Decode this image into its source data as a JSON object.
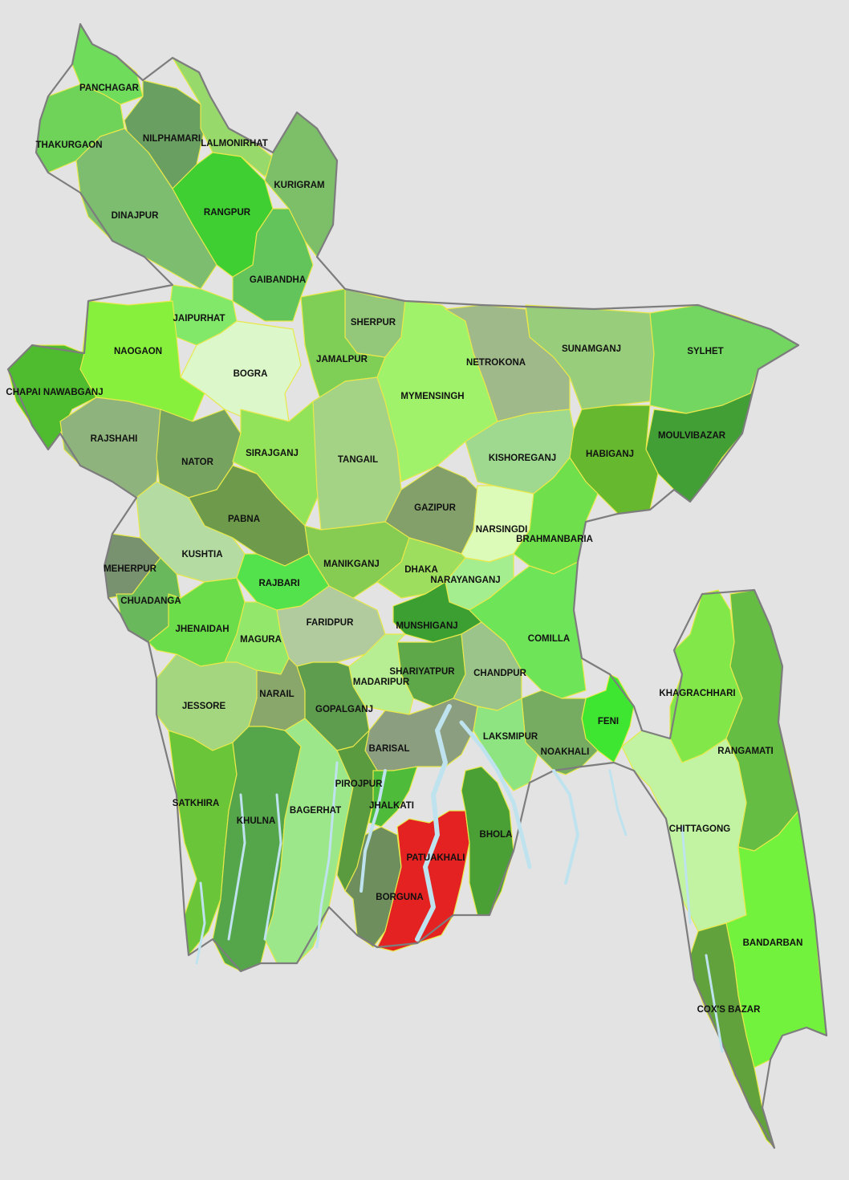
{
  "districts": [
    {
      "id": "panchagar",
      "name": "PANCHAGAR",
      "color": "#6fdc5c"
    },
    {
      "id": "thakurgaon",
      "name": "THAKURGAON",
      "color": "#6fd35a"
    },
    {
      "id": "nilphamari",
      "name": "NILPHAMARI",
      "color": "#6a9f62"
    },
    {
      "id": "lalmonirhat",
      "name": "LALMONIRHAT",
      "color": "#98d96c"
    },
    {
      "id": "kurigram",
      "name": "KURIGRAM",
      "color": "#7cbf68"
    },
    {
      "id": "dinajpur",
      "name": "DINAJPUR",
      "color": "#7cbd70"
    },
    {
      "id": "rangpur",
      "name": "RANGPUR",
      "color": "#3fcf33"
    },
    {
      "id": "gaibandha",
      "name": "GAIBANDHA",
      "color": "#63c45b"
    },
    {
      "id": "jaipurhat",
      "name": "JAIPURHAT",
      "color": "#82e86a"
    },
    {
      "id": "naogaon",
      "name": "NAOGAON",
      "color": "#86f03c"
    },
    {
      "id": "bogra",
      "name": "BOGRA",
      "color": "#dcf7c9"
    },
    {
      "id": "chapai",
      "name": "CHAPAI NAWABGANJ",
      "color": "#4fbb2f"
    },
    {
      "id": "rajshahi",
      "name": "RAJSHAHI",
      "color": "#8fb37d"
    },
    {
      "id": "nator",
      "name": "NATOR",
      "color": "#76a35f"
    },
    {
      "id": "sirajganj",
      "name": "SIRAJGANJ",
      "color": "#92e35a"
    },
    {
      "id": "pabna",
      "name": "PABNA",
      "color": "#6e9b4b"
    },
    {
      "id": "sherpur",
      "name": "SHERPUR",
      "color": "#93c87a"
    },
    {
      "id": "jamalpur",
      "name": "JAMALPUR",
      "color": "#7fcf56"
    },
    {
      "id": "tangail",
      "name": "TANGAIL",
      "color": "#a5d386"
    },
    {
      "id": "mymensingh",
      "name": "MYMENSINGH",
      "color": "#9ff26a"
    },
    {
      "id": "netrokona",
      "name": "NETROKONA",
      "color": "#9fb98b"
    },
    {
      "id": "sunamganj",
      "name": "SUNAMGANJ",
      "color": "#98cd7b"
    },
    {
      "id": "sylhet",
      "name": "SYLHET",
      "color": "#72d661"
    },
    {
      "id": "moulvibazar",
      "name": "MOULVIBAZAR",
      "color": "#429f35"
    },
    {
      "id": "habiganj",
      "name": "HABIGANJ",
      "color": "#66b82e"
    },
    {
      "id": "kishoreganj",
      "name": "KISHOREGANJ",
      "color": "#9fd98f"
    },
    {
      "id": "gazipur",
      "name": "GAZIPUR",
      "color": "#83a06b"
    },
    {
      "id": "narsingdi",
      "name": "NARSINGDI",
      "color": "#ddfbb8"
    },
    {
      "id": "brahmanbaria",
      "name": "BRAHMANBARIA",
      "color": "#6fe04c"
    },
    {
      "id": "kushtia",
      "name": "KUSHTIA",
      "color": "#b4dba2"
    },
    {
      "id": "meherpur",
      "name": "MEHERPUR",
      "color": "#789270"
    },
    {
      "id": "chuadanga",
      "name": "CHUADANGA",
      "color": "#6ab85c"
    },
    {
      "id": "manikganj",
      "name": "MANIKGANJ",
      "color": "#86cc53"
    },
    {
      "id": "dhaka",
      "name": "DHAKA",
      "color": "#9dde5e"
    },
    {
      "id": "narayanganj",
      "name": "NARAYANGANJ",
      "color": "#a5ee8f"
    },
    {
      "id": "rajbari",
      "name": "RAJBARI",
      "color": "#54e24c"
    },
    {
      "id": "jhenaidah",
      "name": "JHENAIDAH",
      "color": "#6bdd4a"
    },
    {
      "id": "magura",
      "name": "MAGURA",
      "color": "#93e76a"
    },
    {
      "id": "faridpur",
      "name": "FARIDPUR",
      "color": "#b1cb9f"
    },
    {
      "id": "munshiganj",
      "name": "MUNSHIGANJ",
      "color": "#3c9f31"
    },
    {
      "id": "comilla",
      "name": "COMILLA",
      "color": "#6ee459"
    },
    {
      "id": "shariyatpur",
      "name": "SHARIYATPUR",
      "color": "#5ea84a"
    },
    {
      "id": "chandpur",
      "name": "CHANDPUR",
      "color": "#9ac48a"
    },
    {
      "id": "madaripur",
      "name": "MADARIPUR",
      "color": "#b8ee93"
    },
    {
      "id": "jessore",
      "name": "JESSORE",
      "color": "#a3d67f"
    },
    {
      "id": "narail",
      "name": "NARAIL",
      "color": "#8aa76b"
    },
    {
      "id": "gopalganj",
      "name": "GOPALGANJ",
      "color": "#5e9c4e"
    },
    {
      "id": "feni",
      "name": "FENI",
      "color": "#3ee631"
    },
    {
      "id": "noakhali",
      "name": "NOAKHALI",
      "color": "#76ac62"
    },
    {
      "id": "laksmipur",
      "name": "LAKSMIPUR",
      "color": "#8ee480"
    },
    {
      "id": "barisal",
      "name": "BARISAL",
      "color": "#8c9e80"
    },
    {
      "id": "satkhira",
      "name": "SATKHIRA",
      "color": "#6ac638"
    },
    {
      "id": "khulna",
      "name": "KHULNA",
      "color": "#55a64a"
    },
    {
      "id": "bagerhat",
      "name": "BAGERHAT",
      "color": "#9ce78a"
    },
    {
      "id": "pirojpur",
      "name": "PIROJPUR",
      "color": "#5b9b3f"
    },
    {
      "id": "jhalkati",
      "name": "JHALKATI",
      "color": "#4fbb3a"
    },
    {
      "id": "patuakhali",
      "name": "PATUAKHALI",
      "color": "#e52222"
    },
    {
      "id": "borguna",
      "name": "BORGUNA",
      "color": "#6e8e5e"
    },
    {
      "id": "bhola",
      "name": "BHOLA",
      "color": "#4aa034"
    },
    {
      "id": "khagrachhari",
      "name": "KHAGRACHHARI",
      "color": "#82e84a"
    },
    {
      "id": "rangamati",
      "name": "RANGAMATI",
      "color": "#66bd43"
    },
    {
      "id": "chittagong",
      "name": "CHITTAGONG",
      "color": "#c1f3a2"
    },
    {
      "id": "bandarban",
      "name": "BANDARBAN",
      "color": "#72f23c"
    },
    {
      "id": "coxsbazar",
      "name": "COX'S BAZAR",
      "color": "#62a23c"
    }
  ]
}
